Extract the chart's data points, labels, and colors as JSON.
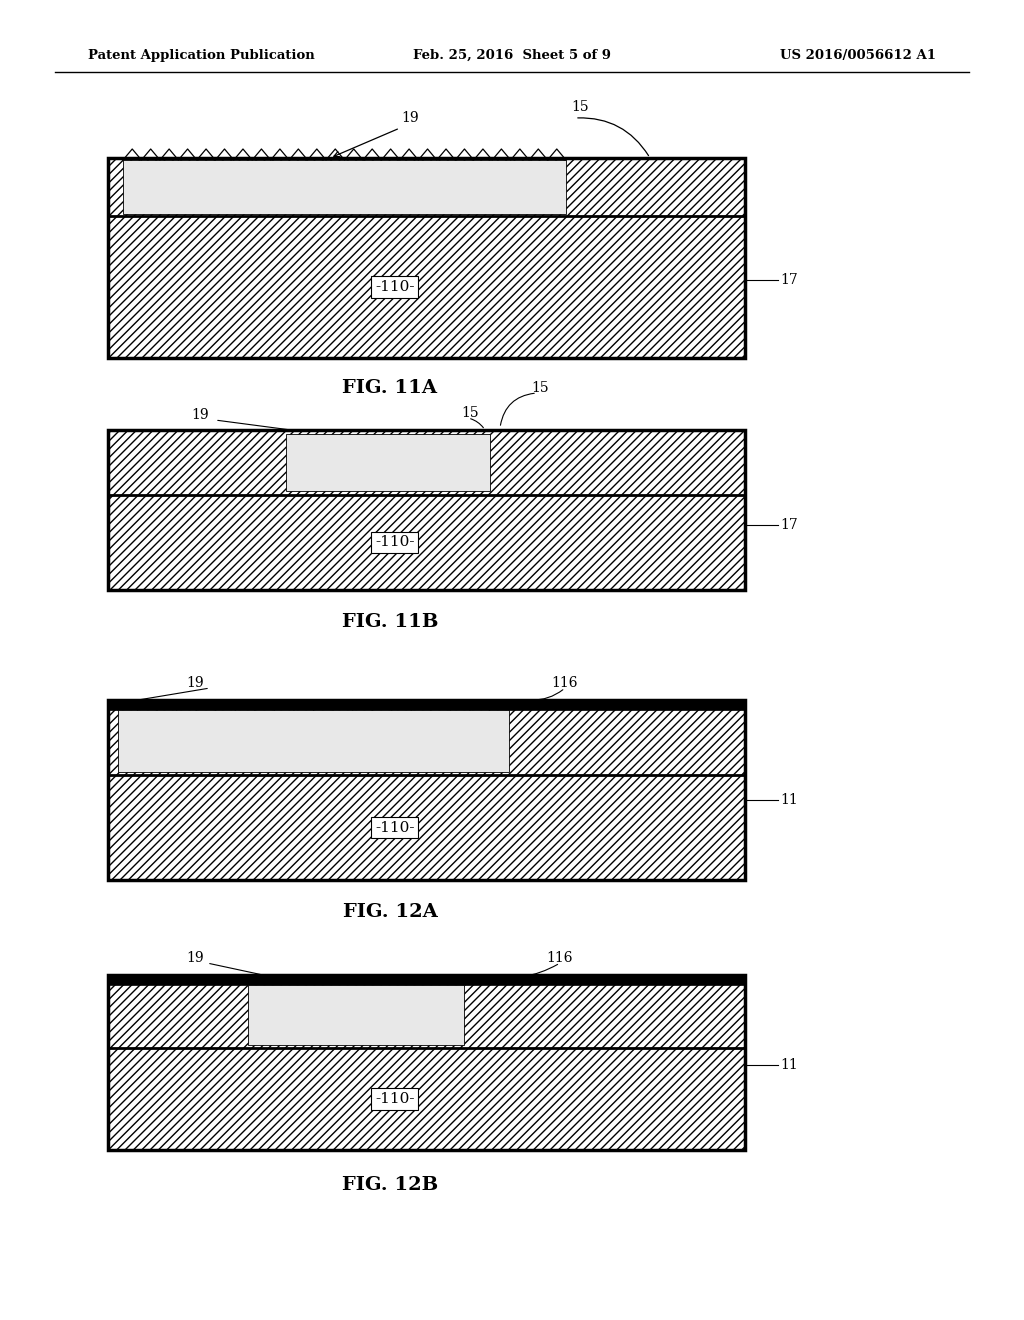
{
  "page_header": {
    "left": "Patent Application Publication",
    "center": "Feb. 25, 2016  Sheet 5 of 9",
    "right": "US 2016/0056612 A1"
  },
  "background_color": "#ffffff"
}
